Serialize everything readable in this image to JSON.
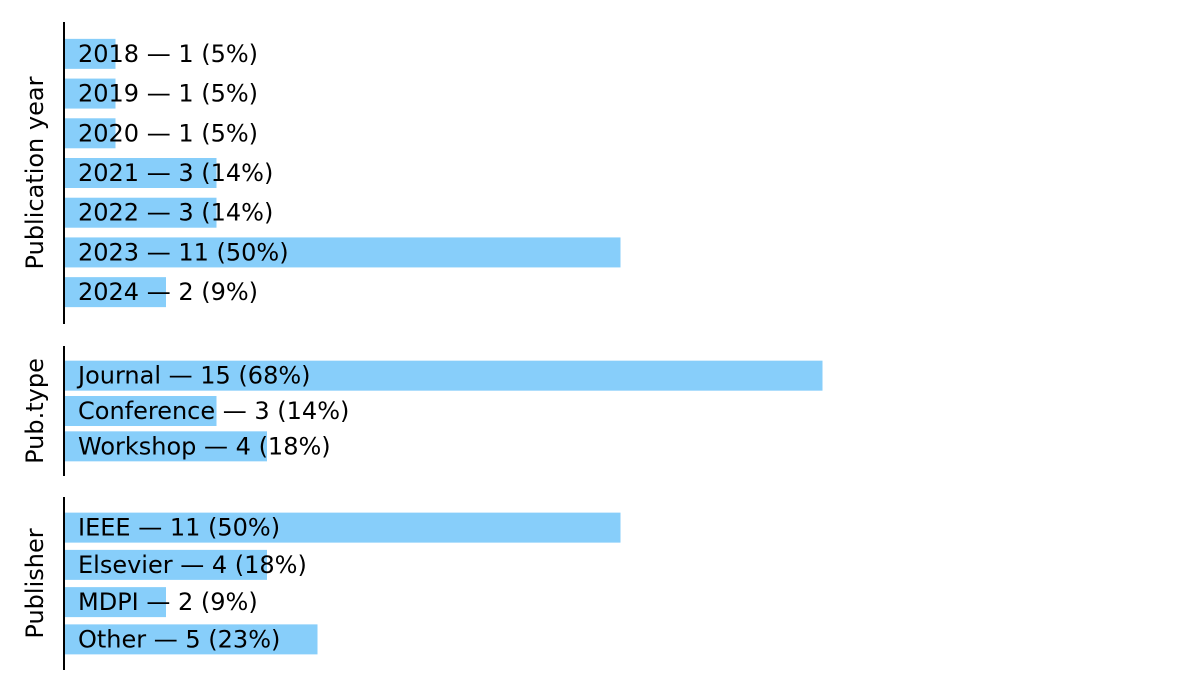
{
  "chart_data": [
    {
      "type": "bar",
      "orientation": "horizontal",
      "ylabel": "Publication year",
      "color": "#87cefa",
      "categories": [
        "2018 — 1 (5%)",
        "2019 — 1 (5%)",
        "2020 — 1 (5%)",
        "2021 — 3 (14%)",
        "2022 — 3 (14%)",
        "2023 — 11 (50%)",
        "2024 — 2 (9%)"
      ],
      "values": [
        1,
        1,
        1,
        3,
        3,
        11,
        2
      ]
    },
    {
      "type": "bar",
      "orientation": "horizontal",
      "ylabel": "Pub.type",
      "color": "#87cefa",
      "categories": [
        "Journal — 15 (68%)",
        "Conference — 3 (14%)",
        "Workshop — 4 (18%)"
      ],
      "values": [
        15,
        3,
        4
      ]
    },
    {
      "type": "bar",
      "orientation": "horizontal",
      "ylabel": "Publisher",
      "color": "#87cefa",
      "categories": [
        "IEEE — 11 (50%)",
        "Elsevier — 4 (18%)",
        "MDPI — 2 (9%)",
        "Other — 5 (23%)"
      ],
      "values": [
        11,
        4,
        2,
        5
      ]
    }
  ]
}
